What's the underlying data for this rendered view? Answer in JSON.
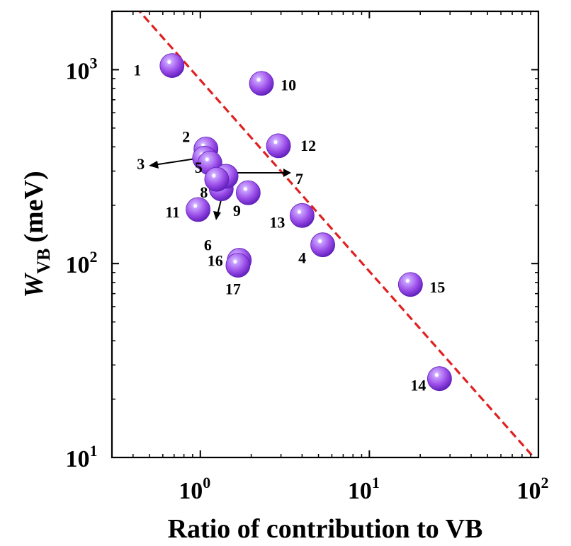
{
  "chart_data": {
    "type": "scatter",
    "title": "",
    "xlabel": "Ratio of contribution to VB",
    "ylabel": {
      "main": "W",
      "subscript": "VB",
      "unit": "(meV)"
    },
    "xscale": "log",
    "yscale": "log",
    "xlim": [
      0.3,
      100
    ],
    "ylim": [
      10,
      2000
    ],
    "grid": false,
    "legend": "none",
    "x_ticks": [
      {
        "value": 1,
        "base": "10",
        "exp": "0"
      },
      {
        "value": 10,
        "base": "10",
        "exp": "1"
      },
      {
        "value": 100,
        "base": "10",
        "exp": "2"
      }
    ],
    "y_ticks": [
      {
        "value": 10,
        "base": "10",
        "exp": "1"
      },
      {
        "value": 100,
        "base": "10",
        "exp": "2"
      },
      {
        "value": 1000,
        "base": "10",
        "exp": "3"
      }
    ],
    "points": [
      {
        "label": "1",
        "x": 0.68,
        "y": 1050
      },
      {
        "label": "2",
        "x": 1.08,
        "y": 390
      },
      {
        "label": "3",
        "x": 1.06,
        "y": 350
      },
      {
        "label": "4",
        "x": 5.3,
        "y": 125
      },
      {
        "label": "5",
        "x": 1.14,
        "y": 330
      },
      {
        "label": "6",
        "x": 1.33,
        "y": 243
      },
      {
        "label": "7",
        "x": 1.42,
        "y": 282
      },
      {
        "label": "8",
        "x": 1.25,
        "y": 272
      },
      {
        "label": "9",
        "x": 1.92,
        "y": 232
      },
      {
        "label": "10",
        "x": 2.3,
        "y": 850
      },
      {
        "label": "11",
        "x": 0.97,
        "y": 190
      },
      {
        "label": "12",
        "x": 2.9,
        "y": 405
      },
      {
        "label": "13",
        "x": 4.0,
        "y": 177
      },
      {
        "label": "14",
        "x": 26.0,
        "y": 25.5
      },
      {
        "label": "15",
        "x": 17.5,
        "y": 78
      },
      {
        "label": "16",
        "x": 1.7,
        "y": 104
      },
      {
        "label": "17",
        "x": 1.67,
        "y": 98
      }
    ],
    "fit_line": {
      "style": "dashed",
      "color": "#e02020",
      "from": {
        "x": 0.3,
        "y": 2900
      },
      "to": {
        "x": 94,
        "y": 10
      }
    },
    "colors": {
      "marker": "#9b4de8",
      "marker_dark": "#5c1cb8",
      "marker_highlight": "#efe2ff",
      "text": "#000000"
    }
  }
}
